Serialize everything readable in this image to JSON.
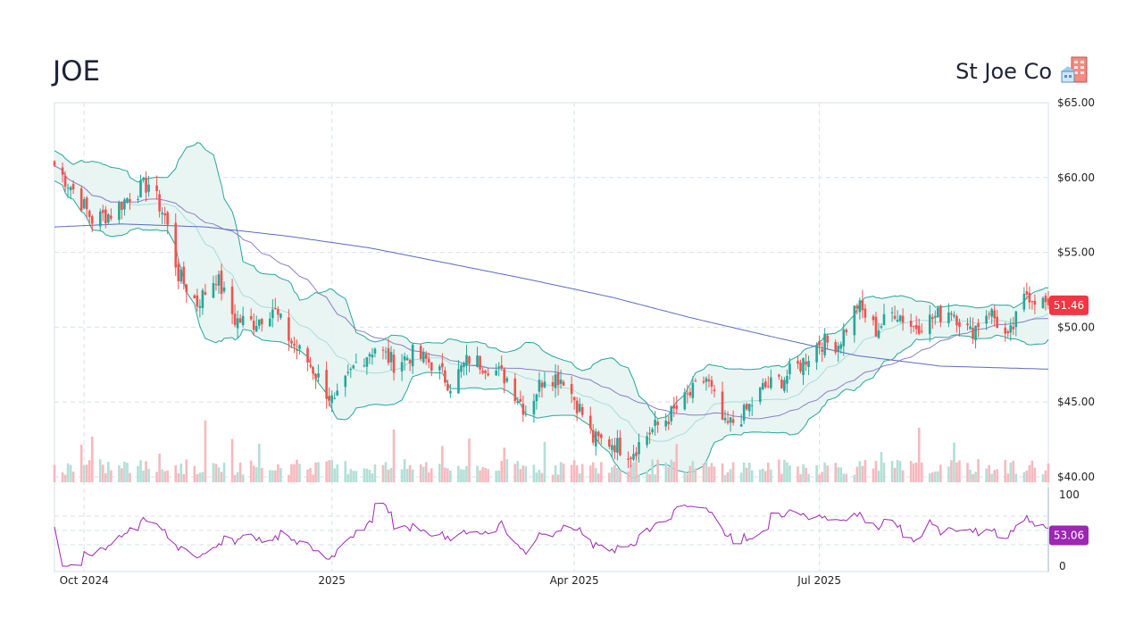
{
  "header": {
    "ticker": "JOE",
    "company": "St Joe Co",
    "icon": "office-building-icon"
  },
  "colors": {
    "up": "#26a69a",
    "down": "#ef5350",
    "band_line": "#26a69a",
    "band_fill": "#e6f4f2",
    "ma_short": "#8e7cc3",
    "ma_long": "#5c6bc0",
    "rsi": "#9c27b0",
    "price_badge": "#f23645",
    "rsi_badge": "#9c27b0",
    "grid": "#d6e0ea"
  },
  "chart_data": {
    "type": "candlestick",
    "title": "JOE",
    "subtitle": "St Joe Co",
    "price_axis": {
      "ylim": [
        40,
        65
      ],
      "ticks": [
        {
          "v": 65,
          "label": "$65.00"
        },
        {
          "v": 60,
          "label": "$60.00"
        },
        {
          "v": 55,
          "label": "$55.00"
        },
        {
          "v": 50,
          "label": "$50.00"
        },
        {
          "v": 45,
          "label": "$45.00"
        },
        {
          "v": 40,
          "label": "$40.00"
        }
      ]
    },
    "rsi_axis": {
      "ylim": [
        0,
        100
      ],
      "ticks": [
        {
          "v": 100,
          "label": "100"
        },
        {
          "v": 0,
          "label": "0"
        }
      ],
      "guide_levels": [
        70,
        50,
        30
      ]
    },
    "x_range": [
      "2024-09-20",
      "2025-09-24"
    ],
    "x_ticks": [
      {
        "date": "2024-10-01",
        "label": "Oct 2024"
      },
      {
        "date": "2025-01-01",
        "label": "2025"
      },
      {
        "date": "2025-04-01",
        "label": "Apr 2025"
      },
      {
        "date": "2025-07-01",
        "label": "Jul 2025"
      }
    ],
    "last_price_label": "51.46",
    "last_price": 51.46,
    "last_rsi_label": "53.06",
    "last_rsi": 53.06,
    "close_anchors": [
      [
        "2024-09-20",
        60.8
      ],
      [
        "2024-09-27",
        59.2
      ],
      [
        "2024-10-04",
        57.2
      ],
      [
        "2024-10-11",
        57.6
      ],
      [
        "2024-10-18",
        58.8
      ],
      [
        "2024-10-25",
        59.6
      ],
      [
        "2024-10-31",
        57.4
      ],
      [
        "2024-11-05",
        53.5
      ],
      [
        "2024-11-12",
        51.6
      ],
      [
        "2024-11-19",
        53.4
      ],
      [
        "2024-11-26",
        50.5
      ],
      [
        "2024-12-03",
        50.3
      ],
      [
        "2024-12-10",
        51.3
      ],
      [
        "2024-12-17",
        49.0
      ],
      [
        "2024-12-24",
        47.5
      ],
      [
        "2025-01-02",
        44.8
      ],
      [
        "2025-01-10",
        47.6
      ],
      [
        "2025-01-17",
        48.7
      ],
      [
        "2025-01-24",
        47.6
      ],
      [
        "2025-01-31",
        48.2
      ],
      [
        "2025-02-07",
        47.6
      ],
      [
        "2025-02-14",
        46.2
      ],
      [
        "2025-02-21",
        47.9
      ],
      [
        "2025-02-28",
        47.4
      ],
      [
        "2025-03-07",
        46.6
      ],
      [
        "2025-03-14",
        44.4
      ],
      [
        "2025-03-21",
        46.8
      ],
      [
        "2025-03-28",
        46.6
      ],
      [
        "2025-04-04",
        44.2
      ],
      [
        "2025-04-08",
        42.5
      ],
      [
        "2025-04-15",
        42.3
      ],
      [
        "2025-04-22",
        41.6
      ],
      [
        "2025-04-29",
        43.0
      ],
      [
        "2025-05-06",
        44.0
      ],
      [
        "2025-05-13",
        45.3
      ],
      [
        "2025-05-20",
        46.6
      ],
      [
        "2025-05-27",
        43.3
      ],
      [
        "2025-06-03",
        44.2
      ],
      [
        "2025-06-10",
        45.9
      ],
      [
        "2025-06-17",
        46.5
      ],
      [
        "2025-06-24",
        47.5
      ],
      [
        "2025-07-01",
        49.0
      ],
      [
        "2025-07-08",
        48.9
      ],
      [
        "2025-07-15",
        51.5
      ],
      [
        "2025-07-22",
        49.8
      ],
      [
        "2025-07-29",
        51.1
      ],
      [
        "2025-08-05",
        50.0
      ],
      [
        "2025-08-12",
        50.6
      ],
      [
        "2025-08-19",
        51.2
      ],
      [
        "2025-08-26",
        49.6
      ],
      [
        "2025-09-02",
        51.2
      ],
      [
        "2025-09-09",
        49.1
      ],
      [
        "2025-09-16",
        52.3
      ],
      [
        "2025-09-24",
        51.46
      ]
    ],
    "ma_long_anchors": [
      [
        "2024-09-20",
        56.7
      ],
      [
        "2024-10-15",
        56.9
      ],
      [
        "2024-11-15",
        56.7
      ],
      [
        "2024-12-15",
        56.1
      ],
      [
        "2025-01-15",
        55.3
      ],
      [
        "2025-02-15",
        54.2
      ],
      [
        "2025-03-15",
        53.2
      ],
      [
        "2025-04-15",
        52.0
      ],
      [
        "2025-05-15",
        50.6
      ],
      [
        "2025-06-15",
        49.3
      ],
      [
        "2025-07-15",
        48.1
      ],
      [
        "2025-08-15",
        47.4
      ],
      [
        "2025-09-24",
        47.2
      ]
    ]
  }
}
